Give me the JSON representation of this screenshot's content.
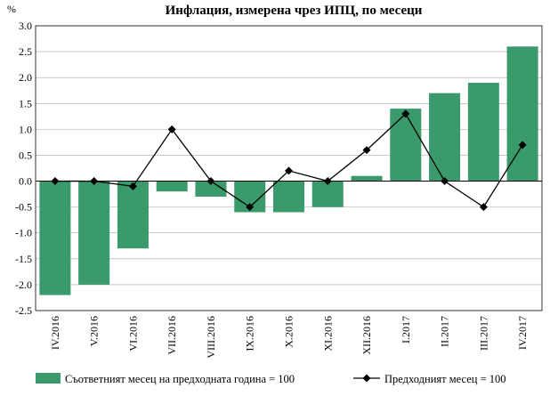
{
  "chart_data": {
    "type": "bar",
    "title": "Инфлация, измерена чрез ИПЦ, по месеци",
    "ylabel": "%",
    "xlabel": "",
    "ylim": [
      -2.5,
      3.0
    ],
    "ytick_step": 0.5,
    "yticks": [
      "3.0",
      "2.5",
      "2.0",
      "1.5",
      "1.0",
      "0.5",
      "0.0",
      "-0.5",
      "-1.0",
      "-1.5",
      "-2.0",
      "-2.5"
    ],
    "grid": true,
    "legend_position": "bottom",
    "categories": [
      "IV.2016",
      "V.2016",
      "VI.2016",
      "VII.2016",
      "VIII.2016",
      "IX.2016",
      "X.2016",
      "XI.2016",
      "XII.2016",
      "I.2017",
      "II.2017",
      "III.2017",
      "IV.2017"
    ],
    "series": [
      {
        "name": "Съответният месец на предходната година = 100",
        "kind": "bar",
        "color": "#3a9a6c",
        "values": [
          -2.2,
          -2.0,
          -1.3,
          -0.2,
          -0.3,
          -0.6,
          -0.6,
          -0.5,
          0.1,
          1.4,
          1.7,
          1.9,
          2.6
        ]
      },
      {
        "name": "Предходният месец = 100",
        "kind": "line",
        "color": "#000000",
        "values": [
          0.0,
          0.0,
          -0.1,
          1.0,
          0.0,
          -0.5,
          0.2,
          0.0,
          0.6,
          1.3,
          0.0,
          -0.5,
          0.7
        ]
      }
    ]
  }
}
